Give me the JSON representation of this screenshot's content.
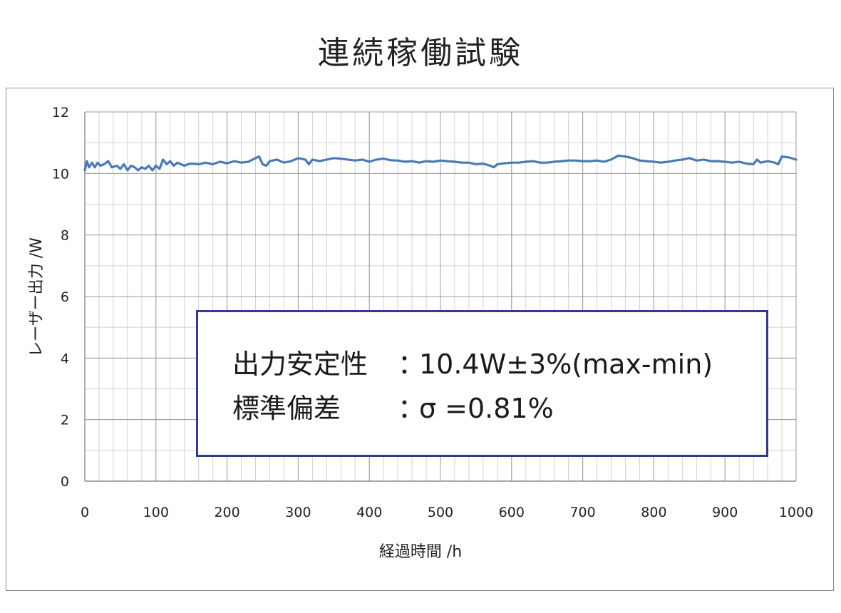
{
  "chart_data": {
    "type": "line",
    "title": "連続稼働試験",
    "xlabel": "経過時間 /h",
    "ylabel": "レーザー出力 /W",
    "xlim": [
      0,
      1000
    ],
    "ylim": [
      0,
      12
    ],
    "x_ticks": [
      0,
      100,
      200,
      300,
      400,
      500,
      600,
      700,
      800,
      900,
      1000
    ],
    "y_ticks": [
      0,
      2,
      4,
      6,
      8,
      10,
      12
    ],
    "grid": true,
    "line_color": "#4a7ab5",
    "series": [
      {
        "x": [
          0,
          3,
          6,
          10,
          14,
          18,
          22,
          27,
          33,
          38,
          45,
          50,
          55,
          60,
          65,
          70,
          75,
          80,
          85,
          90,
          95,
          100,
          105,
          110,
          115,
          120,
          125,
          130,
          135,
          140,
          145,
          150,
          160,
          170,
          180,
          190,
          200,
          210,
          220,
          230,
          240,
          245,
          250,
          255,
          260,
          270,
          280,
          290,
          300,
          310,
          315,
          320,
          330,
          340,
          350,
          360,
          370,
          380,
          390,
          400,
          410,
          420,
          430,
          440,
          450,
          460,
          470,
          480,
          490,
          500,
          510,
          520,
          530,
          540,
          550,
          560,
          570,
          575,
          580,
          590,
          600,
          610,
          620,
          630,
          640,
          650,
          660,
          670,
          680,
          690,
          700,
          710,
          720,
          730,
          740,
          750,
          760,
          770,
          780,
          790,
          800,
          810,
          820,
          830,
          840,
          850,
          860,
          870,
          880,
          890,
          900,
          910,
          920,
          930,
          940,
          945,
          950,
          960,
          970,
          975,
          980,
          990,
          1000
        ],
        "values": [
          10.1,
          10.4,
          10.2,
          10.35,
          10.2,
          10.35,
          10.25,
          10.3,
          10.4,
          10.2,
          10.25,
          10.15,
          10.3,
          10.1,
          10.25,
          10.2,
          10.1,
          10.2,
          10.15,
          10.25,
          10.1,
          10.25,
          10.15,
          10.45,
          10.3,
          10.4,
          10.25,
          10.35,
          10.3,
          10.25,
          10.3,
          10.32,
          10.3,
          10.35,
          10.3,
          10.38,
          10.33,
          10.4,
          10.35,
          10.38,
          10.5,
          10.55,
          10.3,
          10.25,
          10.4,
          10.45,
          10.35,
          10.4,
          10.5,
          10.45,
          10.3,
          10.45,
          10.4,
          10.45,
          10.5,
          10.48,
          10.45,
          10.42,
          10.45,
          10.38,
          10.45,
          10.48,
          10.43,
          10.42,
          10.38,
          10.4,
          10.35,
          10.4,
          10.38,
          10.42,
          10.4,
          10.38,
          10.35,
          10.35,
          10.3,
          10.32,
          10.25,
          10.2,
          10.3,
          10.33,
          10.35,
          10.35,
          10.38,
          10.4,
          10.35,
          10.35,
          10.38,
          10.4,
          10.42,
          10.42,
          10.4,
          10.4,
          10.42,
          10.38,
          10.45,
          10.58,
          10.55,
          10.5,
          10.42,
          10.4,
          10.38,
          10.35,
          10.38,
          10.42,
          10.45,
          10.5,
          10.42,
          10.45,
          10.4,
          10.4,
          10.38,
          10.35,
          10.38,
          10.32,
          10.3,
          10.45,
          10.35,
          10.4,
          10.35,
          10.3,
          10.55,
          10.52,
          10.45
        ]
      }
    ],
    "annotation": {
      "line1_key": "出力安定性",
      "line1_sep": "：",
      "line1_value": "10.4W±3%(max-min)",
      "line2_key": "標準偏差",
      "line2_sep": "：",
      "line2_value": "σ =0.81%",
      "border_color": "#2f3c8a"
    }
  }
}
